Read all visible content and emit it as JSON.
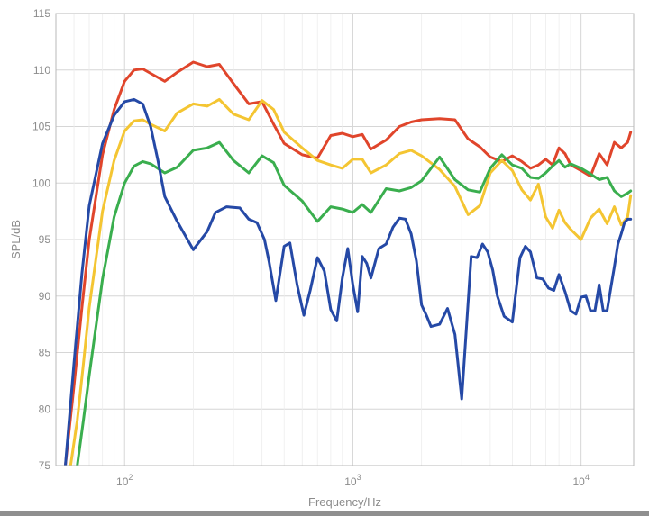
{
  "chart_data": {
    "type": "line",
    "xlabel": "Frequency/Hz",
    "ylabel": "SPL/dB",
    "xscale": "log",
    "xlim": [
      50,
      17000
    ],
    "ylim": [
      75,
      115
    ],
    "yticks": [
      75,
      80,
      85,
      90,
      95,
      100,
      105,
      110,
      115
    ],
    "xticks": [
      {
        "value": 100,
        "base": "10",
        "exp": "2"
      },
      {
        "value": 1000,
        "base": "10",
        "exp": "3"
      },
      {
        "value": 10000,
        "base": "10",
        "exp": "4"
      }
    ],
    "grid": true,
    "series": [
      {
        "color": "#e0452b",
        "x": [
          55,
          60,
          65,
          70,
          80,
          90,
          100,
          110,
          120,
          130,
          150,
          170,
          200,
          230,
          260,
          300,
          350,
          400,
          450,
          500,
          600,
          700,
          800,
          900,
          1000,
          1100,
          1200,
          1400,
          1600,
          1800,
          2000,
          2400,
          2800,
          3200,
          3600,
          4000,
          4500,
          5000,
          5500,
          6000,
          6500,
          7000,
          7500,
          8000,
          8500,
          9000,
          10000,
          11000,
          12000,
          13000,
          14000,
          15000,
          16000,
          16500
        ],
        "y": [
          75,
          82,
          89,
          95,
          102.5,
          106.5,
          109,
          110,
          110.1,
          109.7,
          109,
          109.8,
          110.7,
          110.3,
          110.5,
          108.8,
          107,
          107.2,
          105.2,
          103.5,
          102.5,
          102.2,
          104.2,
          104.4,
          104.1,
          104.3,
          103,
          103.8,
          105,
          105.4,
          105.6,
          105.7,
          105.6,
          103.9,
          103.2,
          102.3,
          101.9,
          102.4,
          101.9,
          101.3,
          101.6,
          102.1,
          101.6,
          103.1,
          102.6,
          101.6,
          101.1,
          100.6,
          102.6,
          101.6,
          103.6,
          103.1,
          103.6,
          104.5
        ]
      },
      {
        "color": "#f4c532",
        "x": [
          58,
          62,
          66,
          70,
          80,
          90,
          100,
          110,
          120,
          130,
          150,
          170,
          200,
          230,
          260,
          300,
          350,
          400,
          450,
          500,
          600,
          700,
          800,
          900,
          1000,
          1100,
          1200,
          1400,
          1600,
          1800,
          2000,
          2400,
          2800,
          3200,
          3600,
          4000,
          4500,
          5000,
          5500,
          6000,
          6500,
          7000,
          7500,
          8000,
          8500,
          9000,
          10000,
          11000,
          12000,
          13000,
          14000,
          15000,
          16000,
          16500
        ],
        "y": [
          75,
          79,
          84,
          89,
          97.5,
          102,
          104.6,
          105.5,
          105.6,
          105.2,
          104.6,
          106.2,
          107,
          106.8,
          107.4,
          106.1,
          105.6,
          107.3,
          106.5,
          104.5,
          103.1,
          102,
          101.6,
          101.3,
          102.1,
          102.1,
          100.9,
          101.6,
          102.6,
          102.9,
          102.4,
          101.2,
          99.7,
          97.2,
          98,
          100.9,
          102,
          101.1,
          99.4,
          98.5,
          99.9,
          97,
          96,
          97.6,
          96.5,
          95.9,
          95,
          96.9,
          97.7,
          96.4,
          97.9,
          96.3,
          97,
          98.9
        ]
      },
      {
        "color": "#3aae4e",
        "x": [
          62,
          66,
          70,
          80,
          90,
          100,
          110,
          120,
          130,
          150,
          170,
          200,
          230,
          260,
          300,
          350,
          400,
          450,
          500,
          600,
          700,
          800,
          900,
          1000,
          1100,
          1200,
          1400,
          1600,
          1800,
          2000,
          2400,
          2800,
          3200,
          3600,
          4000,
          4500,
          5000,
          5500,
          6000,
          6500,
          7000,
          7500,
          8000,
          8500,
          9000,
          10000,
          11000,
          12000,
          13000,
          14000,
          15000,
          16000,
          16500
        ],
        "y": [
          75,
          79,
          83,
          91.5,
          97,
          100,
          101.5,
          101.9,
          101.7,
          100.9,
          101.4,
          102.9,
          103.1,
          103.6,
          102,
          100.9,
          102.4,
          101.8,
          99.8,
          98.4,
          96.6,
          97.9,
          97.7,
          97.4,
          98.1,
          97.4,
          99.5,
          99.3,
          99.6,
          100.2,
          102.3,
          100.3,
          99.4,
          99.2,
          101.3,
          102.5,
          101.6,
          101.3,
          100.5,
          100.4,
          100.9,
          101.5,
          102,
          101.4,
          101.7,
          101.3,
          100.8,
          100.3,
          100.5,
          99.3,
          98.8,
          99.1,
          99.3
        ]
      },
      {
        "color": "#2549a6",
        "x": [
          55,
          60,
          65,
          70,
          80,
          90,
          100,
          110,
          120,
          130,
          140,
          150,
          170,
          200,
          230,
          250,
          280,
          320,
          350,
          380,
          410,
          430,
          460,
          500,
          530,
          570,
          610,
          650,
          700,
          750,
          800,
          850,
          900,
          950,
          1000,
          1050,
          1100,
          1150,
          1200,
          1300,
          1400,
          1500,
          1600,
          1700,
          1800,
          1900,
          2000,
          2100,
          2200,
          2400,
          2600,
          2800,
          3000,
          3300,
          3500,
          3700,
          3900,
          4100,
          4300,
          4600,
          5000,
          5400,
          5700,
          6000,
          6400,
          6800,
          7200,
          7600,
          8000,
          8500,
          9000,
          9500,
          10000,
          10500,
          11000,
          11500,
          12000,
          12500,
          13000,
          13500,
          14000,
          14500,
          15000,
          15500,
          16000,
          16500
        ],
        "y": [
          75,
          84,
          92,
          98,
          103.5,
          106,
          107.2,
          107.4,
          107,
          105,
          102,
          98.8,
          96.6,
          94.1,
          95.7,
          97.4,
          97.9,
          97.8,
          96.8,
          96.5,
          95,
          93,
          89.6,
          94.4,
          94.7,
          91,
          88.3,
          90.5,
          93.4,
          92.2,
          88.8,
          87.8,
          91.6,
          94.2,
          91,
          88.6,
          93.5,
          92.9,
          91.6,
          94.2,
          94.6,
          96.1,
          96.9,
          96.8,
          95.5,
          93.1,
          89.2,
          88.3,
          87.3,
          87.5,
          88.9,
          86.6,
          80.9,
          93.5,
          93.4,
          94.6,
          93.9,
          92.3,
          90,
          88.2,
          87.7,
          93.4,
          94.4,
          93.9,
          91.6,
          91.5,
          90.7,
          90.5,
          91.9,
          90.4,
          88.7,
          88.4,
          89.9,
          90,
          88.7,
          88.7,
          91,
          88.7,
          88.7,
          90.7,
          92.6,
          94.6,
          95.5,
          96.5,
          96.8,
          96.8
        ]
      }
    ]
  }
}
